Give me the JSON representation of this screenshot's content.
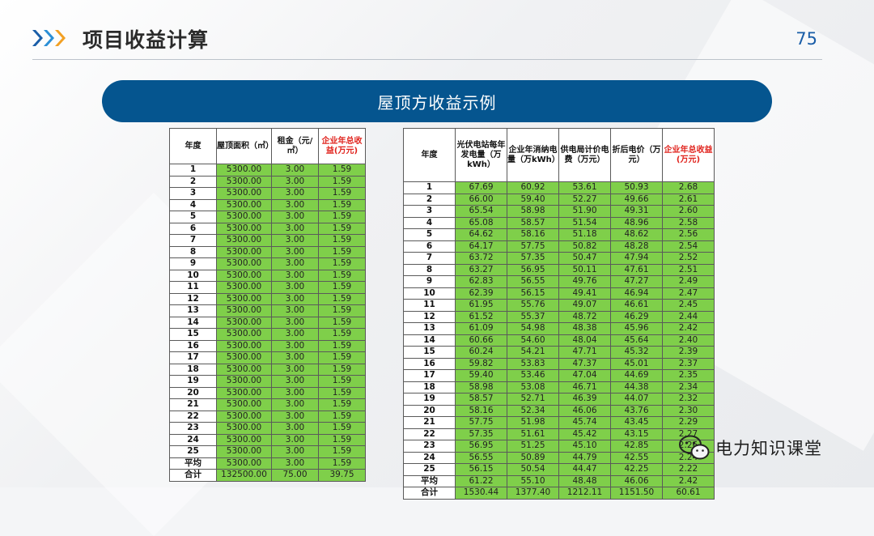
{
  "header": {
    "title": "项目收益计算",
    "page_number": "75",
    "accent": "#1a5ea8",
    "arrow_colors": [
      "#1a5ea8",
      "#2b8fd6",
      "#f2a024"
    ]
  },
  "banner": {
    "title": "屋顶方收益示例",
    "color": "#05558f"
  },
  "table_rent": {
    "headers": [
      "年度",
      "屋顶面积（㎡）",
      "租金（元/㎡）",
      "企业年总收益(万元)"
    ],
    "rows": [
      [
        "1",
        "5300.00",
        "3.00",
        "1.59"
      ],
      [
        "2",
        "5300.00",
        "3.00",
        "1.59"
      ],
      [
        "3",
        "5300.00",
        "3.00",
        "1.59"
      ],
      [
        "4",
        "5300.00",
        "3.00",
        "1.59"
      ],
      [
        "5",
        "5300.00",
        "3.00",
        "1.59"
      ],
      [
        "6",
        "5300.00",
        "3.00",
        "1.59"
      ],
      [
        "7",
        "5300.00",
        "3.00",
        "1.59"
      ],
      [
        "8",
        "5300.00",
        "3.00",
        "1.59"
      ],
      [
        "9",
        "5300.00",
        "3.00",
        "1.59"
      ],
      [
        "10",
        "5300.00",
        "3.00",
        "1.59"
      ],
      [
        "11",
        "5300.00",
        "3.00",
        "1.59"
      ],
      [
        "12",
        "5300.00",
        "3.00",
        "1.59"
      ],
      [
        "13",
        "5300.00",
        "3.00",
        "1.59"
      ],
      [
        "14",
        "5300.00",
        "3.00",
        "1.59"
      ],
      [
        "15",
        "5300.00",
        "3.00",
        "1.59"
      ],
      [
        "16",
        "5300.00",
        "3.00",
        "1.59"
      ],
      [
        "17",
        "5300.00",
        "3.00",
        "1.59"
      ],
      [
        "18",
        "5300.00",
        "3.00",
        "1.59"
      ],
      [
        "19",
        "5300.00",
        "3.00",
        "1.59"
      ],
      [
        "20",
        "5300.00",
        "3.00",
        "1.59"
      ],
      [
        "21",
        "5300.00",
        "3.00",
        "1.59"
      ],
      [
        "22",
        "5300.00",
        "3.00",
        "1.59"
      ],
      [
        "23",
        "5300.00",
        "3.00",
        "1.59"
      ],
      [
        "24",
        "5300.00",
        "3.00",
        "1.59"
      ],
      [
        "25",
        "5300.00",
        "3.00",
        "1.59"
      ],
      [
        "平均",
        "5300.00",
        "3.00",
        "1.59"
      ],
      [
        "合计",
        "132500.00",
        "75.00",
        "39.75"
      ]
    ]
  },
  "table_energy": {
    "headers": [
      "年度",
      "光伏电站每年发电量（万kWh）",
      "企业年消纳电量（万kWh）",
      "供电局计价电费（万元）",
      "折后电价（万元）",
      "企业年总收益(万元)"
    ],
    "rows": [
      [
        "1",
        "67.69",
        "60.92",
        "53.61",
        "50.93",
        "2.68"
      ],
      [
        "2",
        "66.00",
        "59.40",
        "52.27",
        "49.66",
        "2.61"
      ],
      [
        "3",
        "65.54",
        "58.98",
        "51.90",
        "49.31",
        "2.60"
      ],
      [
        "4",
        "65.08",
        "58.57",
        "51.54",
        "48.96",
        "2.58"
      ],
      [
        "5",
        "64.62",
        "58.16",
        "51.18",
        "48.62",
        "2.56"
      ],
      [
        "6",
        "64.17",
        "57.75",
        "50.82",
        "48.28",
        "2.54"
      ],
      [
        "7",
        "63.72",
        "57.35",
        "50.47",
        "47.94",
        "2.52"
      ],
      [
        "8",
        "63.27",
        "56.95",
        "50.11",
        "47.61",
        "2.51"
      ],
      [
        "9",
        "62.83",
        "56.55",
        "49.76",
        "47.27",
        "2.49"
      ],
      [
        "10",
        "62.39",
        "56.15",
        "49.41",
        "46.94",
        "2.47"
      ],
      [
        "11",
        "61.95",
        "55.76",
        "49.07",
        "46.61",
        "2.45"
      ],
      [
        "12",
        "61.52",
        "55.37",
        "48.72",
        "46.29",
        "2.44"
      ],
      [
        "13",
        "61.09",
        "54.98",
        "48.38",
        "45.96",
        "2.42"
      ],
      [
        "14",
        "60.66",
        "54.60",
        "48.04",
        "45.64",
        "2.40"
      ],
      [
        "15",
        "60.24",
        "54.21",
        "47.71",
        "45.32",
        "2.39"
      ],
      [
        "16",
        "59.82",
        "53.83",
        "47.37",
        "45.01",
        "2.37"
      ],
      [
        "17",
        "59.40",
        "53.46",
        "47.04",
        "44.69",
        "2.35"
      ],
      [
        "18",
        "58.98",
        "53.08",
        "46.71",
        "44.38",
        "2.34"
      ],
      [
        "19",
        "58.57",
        "52.71",
        "46.39",
        "44.07",
        "2.32"
      ],
      [
        "20",
        "58.16",
        "52.34",
        "46.06",
        "43.76",
        "2.30"
      ],
      [
        "21",
        "57.75",
        "51.98",
        "45.74",
        "43.45",
        "2.29"
      ],
      [
        "22",
        "57.35",
        "51.61",
        "45.42",
        "43.15",
        "2.27"
      ],
      [
        "23",
        "56.95",
        "51.25",
        "45.10",
        "42.85",
        "2.26"
      ],
      [
        "24",
        "56.55",
        "50.89",
        "44.79",
        "42.55",
        "2.24"
      ],
      [
        "25",
        "56.15",
        "50.54",
        "44.47",
        "42.25",
        "2.22"
      ],
      [
        "平均",
        "61.22",
        "55.10",
        "48.48",
        "46.06",
        "2.42"
      ],
      [
        "合计",
        "1530.44",
        "1377.40",
        "1212.11",
        "1151.50",
        "60.61"
      ]
    ]
  },
  "watermark": {
    "icon": "wechat-icon",
    "text": "电力知识课堂"
  },
  "colors": {
    "cell_green": "#7fcf4a",
    "header_red": "#e0211b"
  }
}
